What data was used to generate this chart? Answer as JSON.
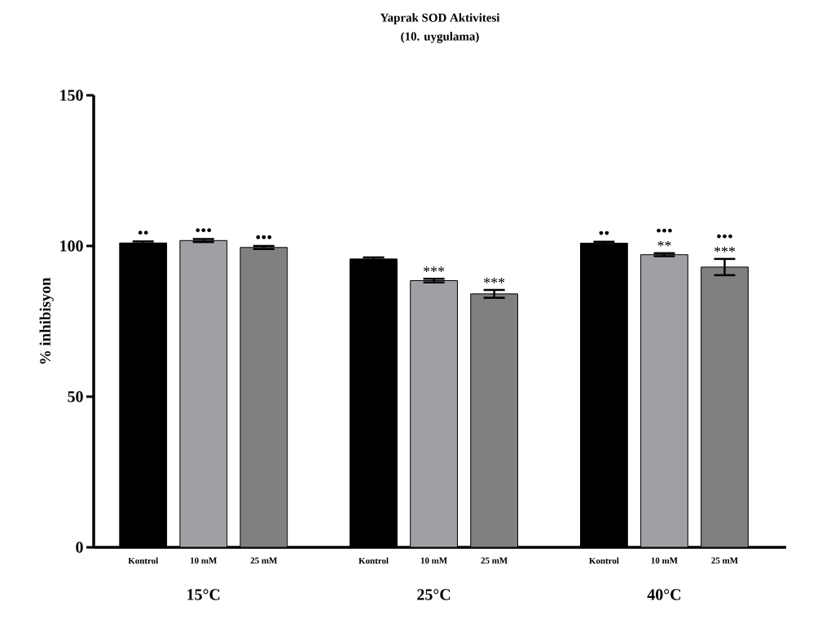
{
  "chart_data": {
    "type": "bar",
    "title": "Yaprak SOD Aktivitesi",
    "subtitle": "(10. uygulama)",
    "ylabel": "% inhibisyon",
    "categories": [
      "Kontrol",
      "10 mM",
      "25 mM",
      "Kontrol",
      "10 mM",
      "25 mM",
      "Kontrol",
      "10 mM",
      "25 mM"
    ],
    "values": [
      101.0,
      101.8,
      99.5,
      95.7,
      88.5,
      84.1,
      100.9,
      97.1,
      93.0
    ],
    "errors": [
      0.5,
      0.5,
      0.5,
      0.5,
      0.6,
      1.3,
      0.5,
      0.5,
      2.7
    ],
    "colors": [
      "#000000",
      "#a0a0a4",
      "#808080",
      "#000000",
      "#a0a0a4",
      "#808080",
      "#000000",
      "#a0a0a4",
      "#808080"
    ],
    "value_labels": [
      null,
      null,
      null,
      null,
      "***",
      "***",
      null,
      "**",
      "***"
    ],
    "annotations": [
      "15°C",
      "25°C",
      "40°C",
      "••",
      "•••",
      "•••",
      "••",
      "•••",
      "•••"
    ],
    "ylim": [
      0,
      150
    ],
    "yticks": [
      0,
      50,
      100,
      150
    ]
  }
}
